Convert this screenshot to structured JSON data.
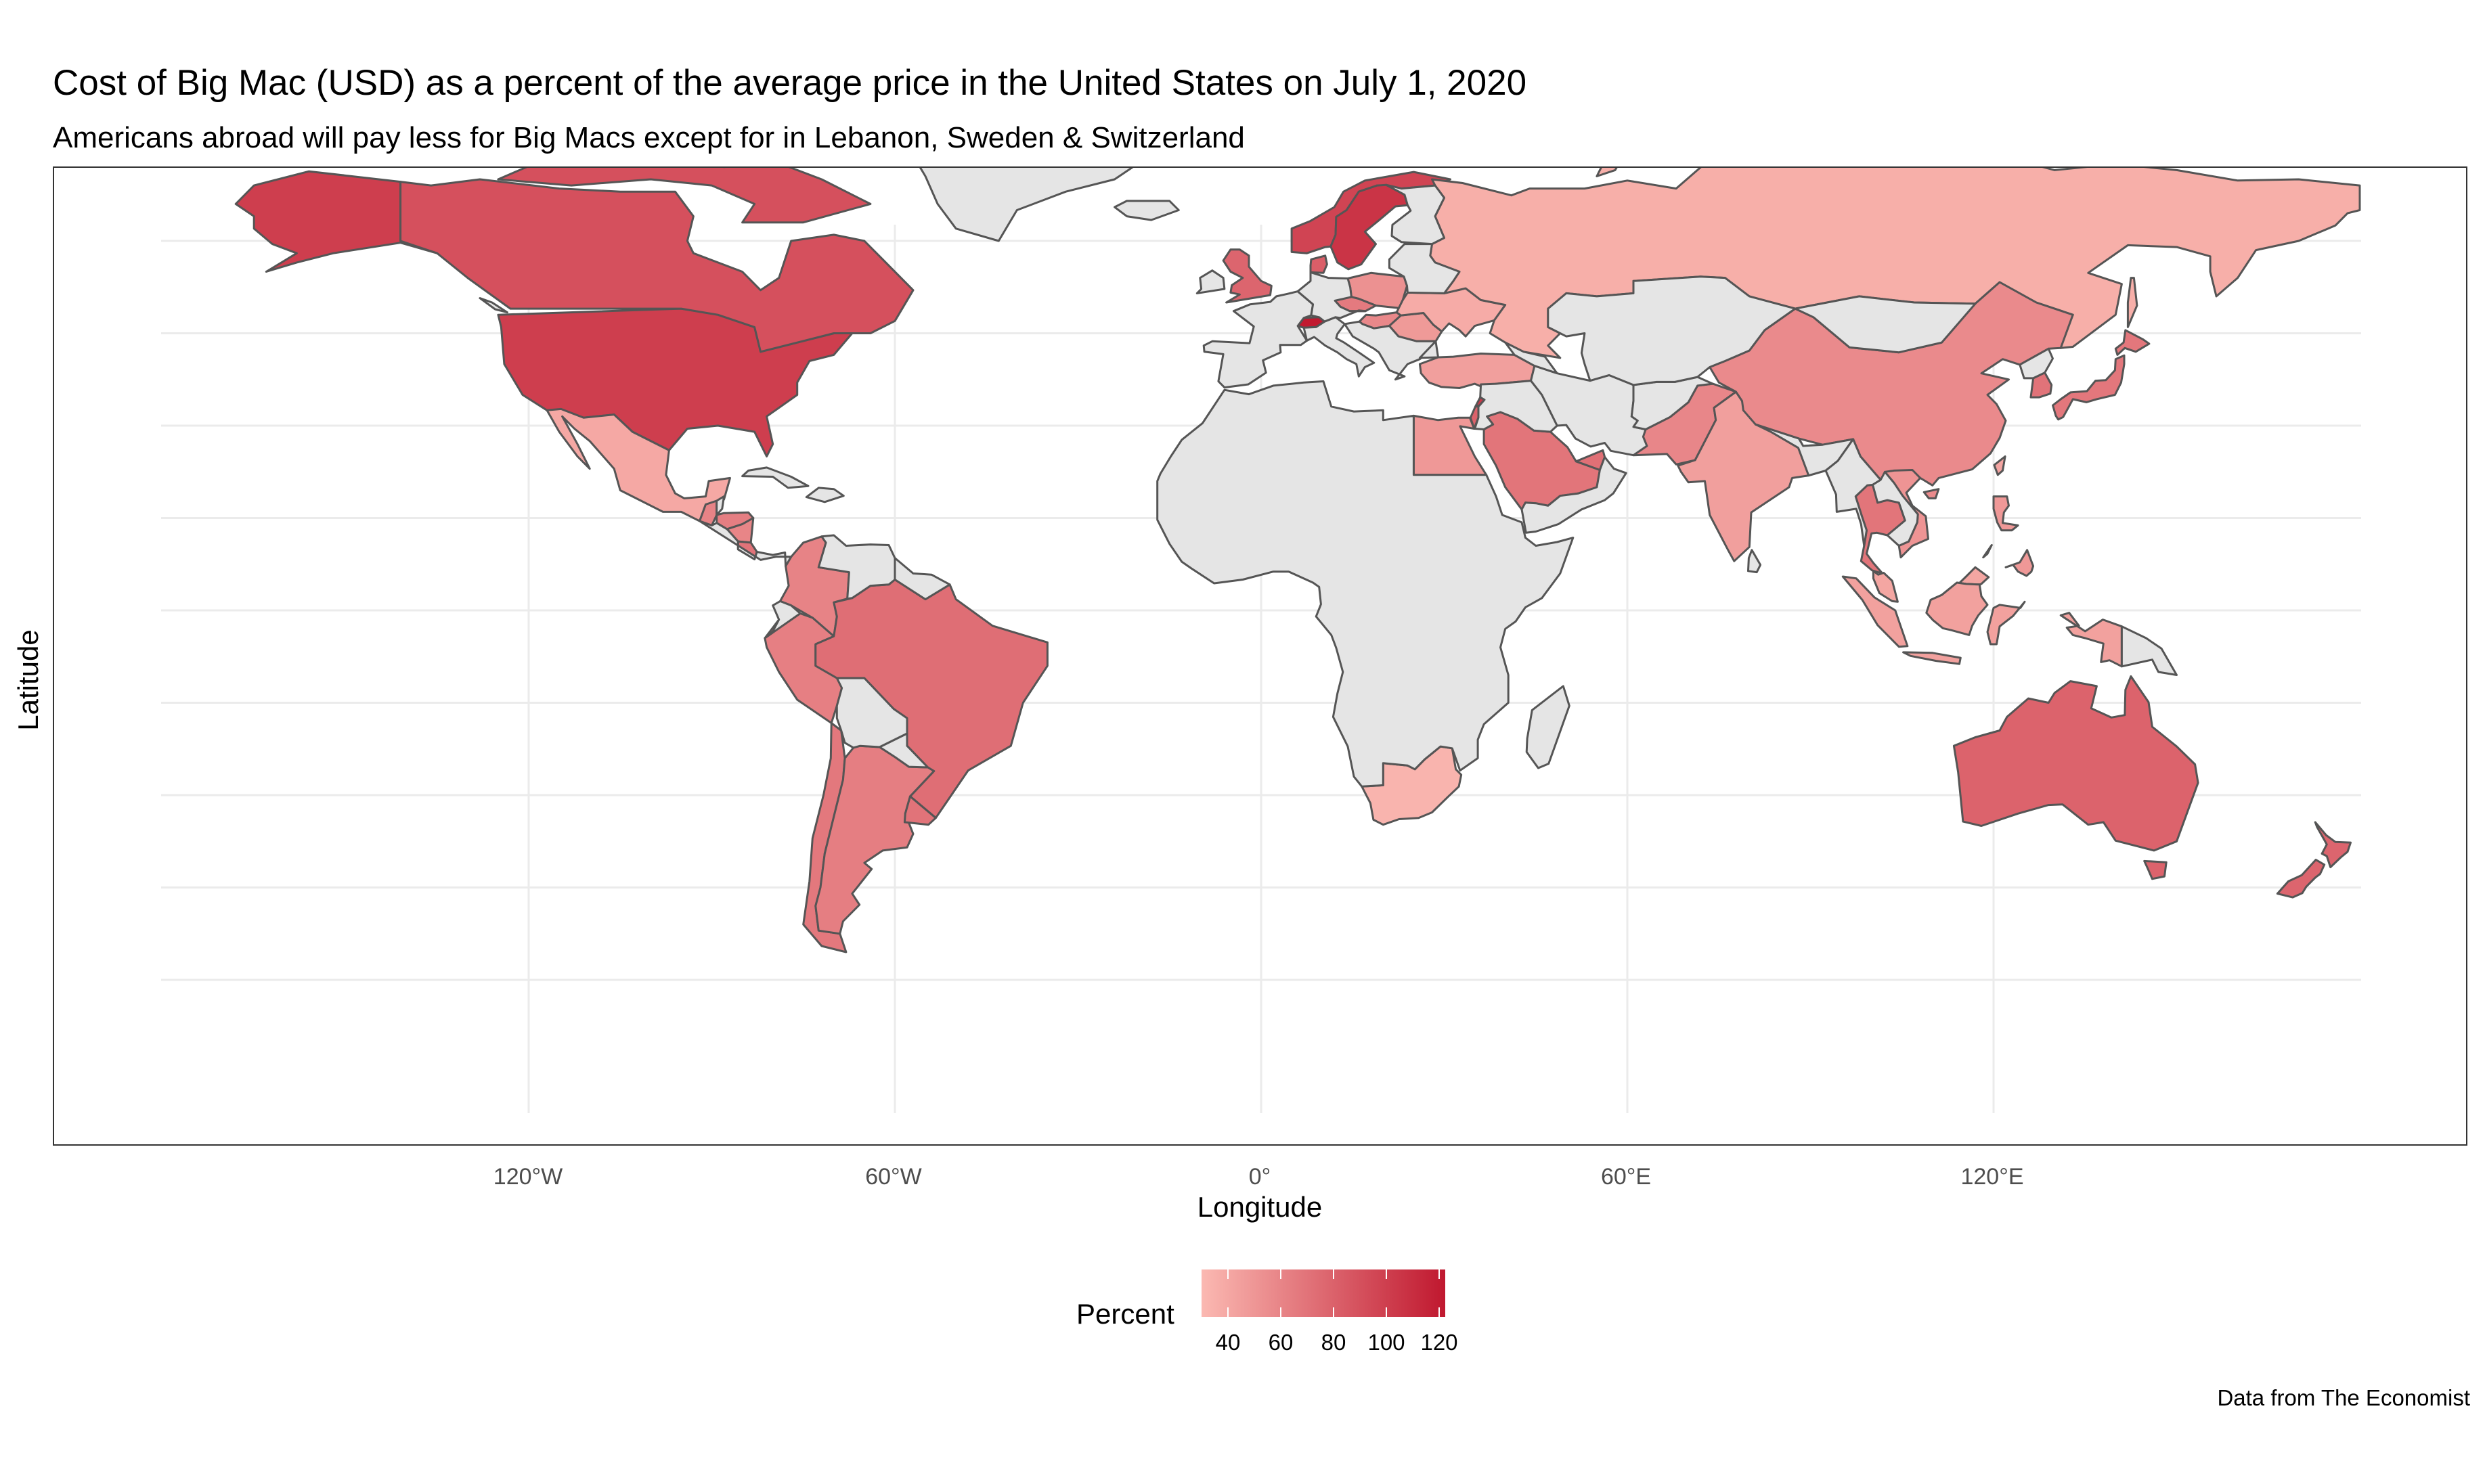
{
  "title": "Cost of Big Mac (USD) as a percent of the average price in the United States on July 1, 2020",
  "subtitle": "Americans abroad will pay less for Big Macs except for in Lebanon, Sweden & Switzerland",
  "caption": "Data from The Economist",
  "axes": {
    "xlabel": "Longitude",
    "ylabel": "Latitude",
    "xticks": [
      "120°W",
      "60°W",
      "0°",
      "60°E",
      "120°E"
    ]
  },
  "legend": {
    "title": "Percent",
    "ticks": [
      "40",
      "60",
      "80",
      "100",
      "120"
    ]
  },
  "colors": {
    "low": "#fbb9b2",
    "high": "#c0182f",
    "missing": "#e5e5e5",
    "border": "#555555",
    "grid": "#ebebeb"
  },
  "chart_data": {
    "type": "choropleth",
    "variable": "Percent",
    "scale": {
      "min": 30,
      "max": 122
    },
    "xlim": [
      -180,
      180
    ],
    "ylim": [
      -90,
      90
    ],
    "missing_regions": "Greenland, most of Africa, Central Asia, Mongolia, Bolivia, Paraguay, Venezuela, Cuba, Iceland",
    "values": {
      "United States": 100,
      "Canada": 90,
      "Mexico": 40,
      "Brazil": 73,
      "Argentina": 64,
      "Chile": 67,
      "Colombia": 61,
      "Peru": 63,
      "Uruguay": 70,
      "Costa Rica": 70,
      "Guatemala": 61,
      "Honduras": 64,
      "Nicaragua": 60,
      "United Kingdom": 78,
      "Norway": 97,
      "Sweden": 106,
      "Switzerland": 121,
      "Denmark": 82,
      "Poland": 53,
      "Czech Republic": 66,
      "Hungary": 58,
      "Romania": 48,
      "Ukraine": 38,
      "Russia": 36,
      "Turkey": 45,
      "Lebanon": 103,
      "Egypt": 49,
      "Saudi Arabia": 69,
      "United Arab Emirates": 72,
      "Israel": 80,
      "Pakistan": 59,
      "India": 45,
      "China": 57,
      "South Korea": 70,
      "Japan": 68,
      "Thailand": 69,
      "Vietnam": 51,
      "Malaysia": 41,
      "Indonesia": 44,
      "Philippines": 49,
      "Taiwan": 42,
      "Australia": 79,
      "New Zealand": 78,
      "South Africa": 33
    }
  }
}
